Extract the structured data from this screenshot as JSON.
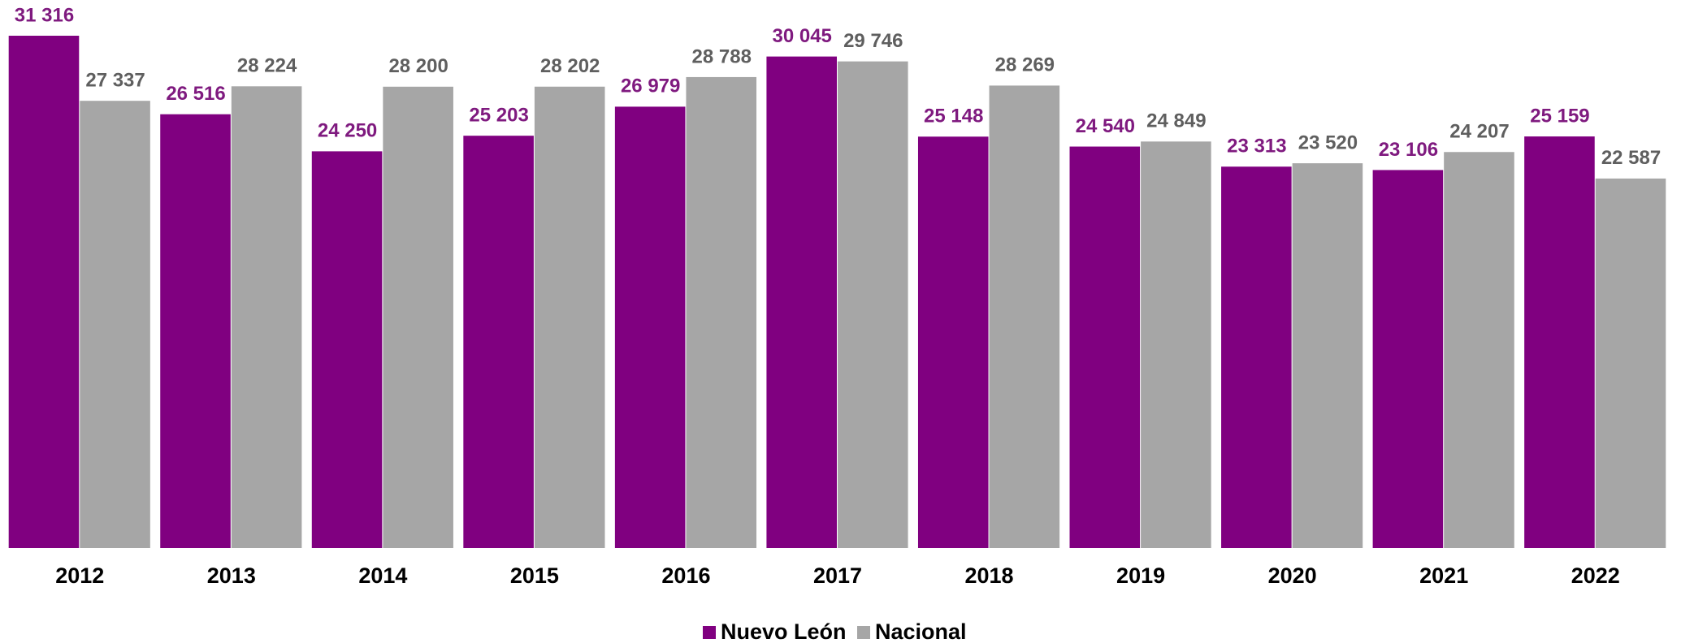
{
  "chart_data": {
    "type": "bar",
    "categories": [
      "2012",
      "2013",
      "2014",
      "2015",
      "2016",
      "2017",
      "2018",
      "2019",
      "2020",
      "2021",
      "2022"
    ],
    "series": [
      {
        "name": "Nuevo León",
        "color": "#800080",
        "label_color": "#7f1a7f",
        "values": [
          31316,
          26516,
          24250,
          25203,
          26979,
          30045,
          25148,
          24540,
          23313,
          23106,
          25159
        ],
        "value_labels": [
          "31 316",
          "26 516",
          "24 250",
          "25 203",
          "26 979",
          "30 045",
          "25 148",
          "24 540",
          "23 313",
          "23 106",
          "25 159"
        ]
      },
      {
        "name": "Nacional",
        "color": "#a6a6a6",
        "label_color": "#5f5f5f",
        "values": [
          27337,
          28224,
          28200,
          28202,
          28788,
          29746,
          28269,
          24849,
          23520,
          24207,
          22587
        ],
        "value_labels": [
          "27 337",
          "28 224",
          "28 200",
          "28 202",
          "28 788",
          "29 746",
          "28 269",
          "24 849",
          "23 520",
          "24 207",
          "22 587"
        ]
      }
    ],
    "ylim": [
      0,
      33500
    ],
    "legend": "bottom"
  }
}
